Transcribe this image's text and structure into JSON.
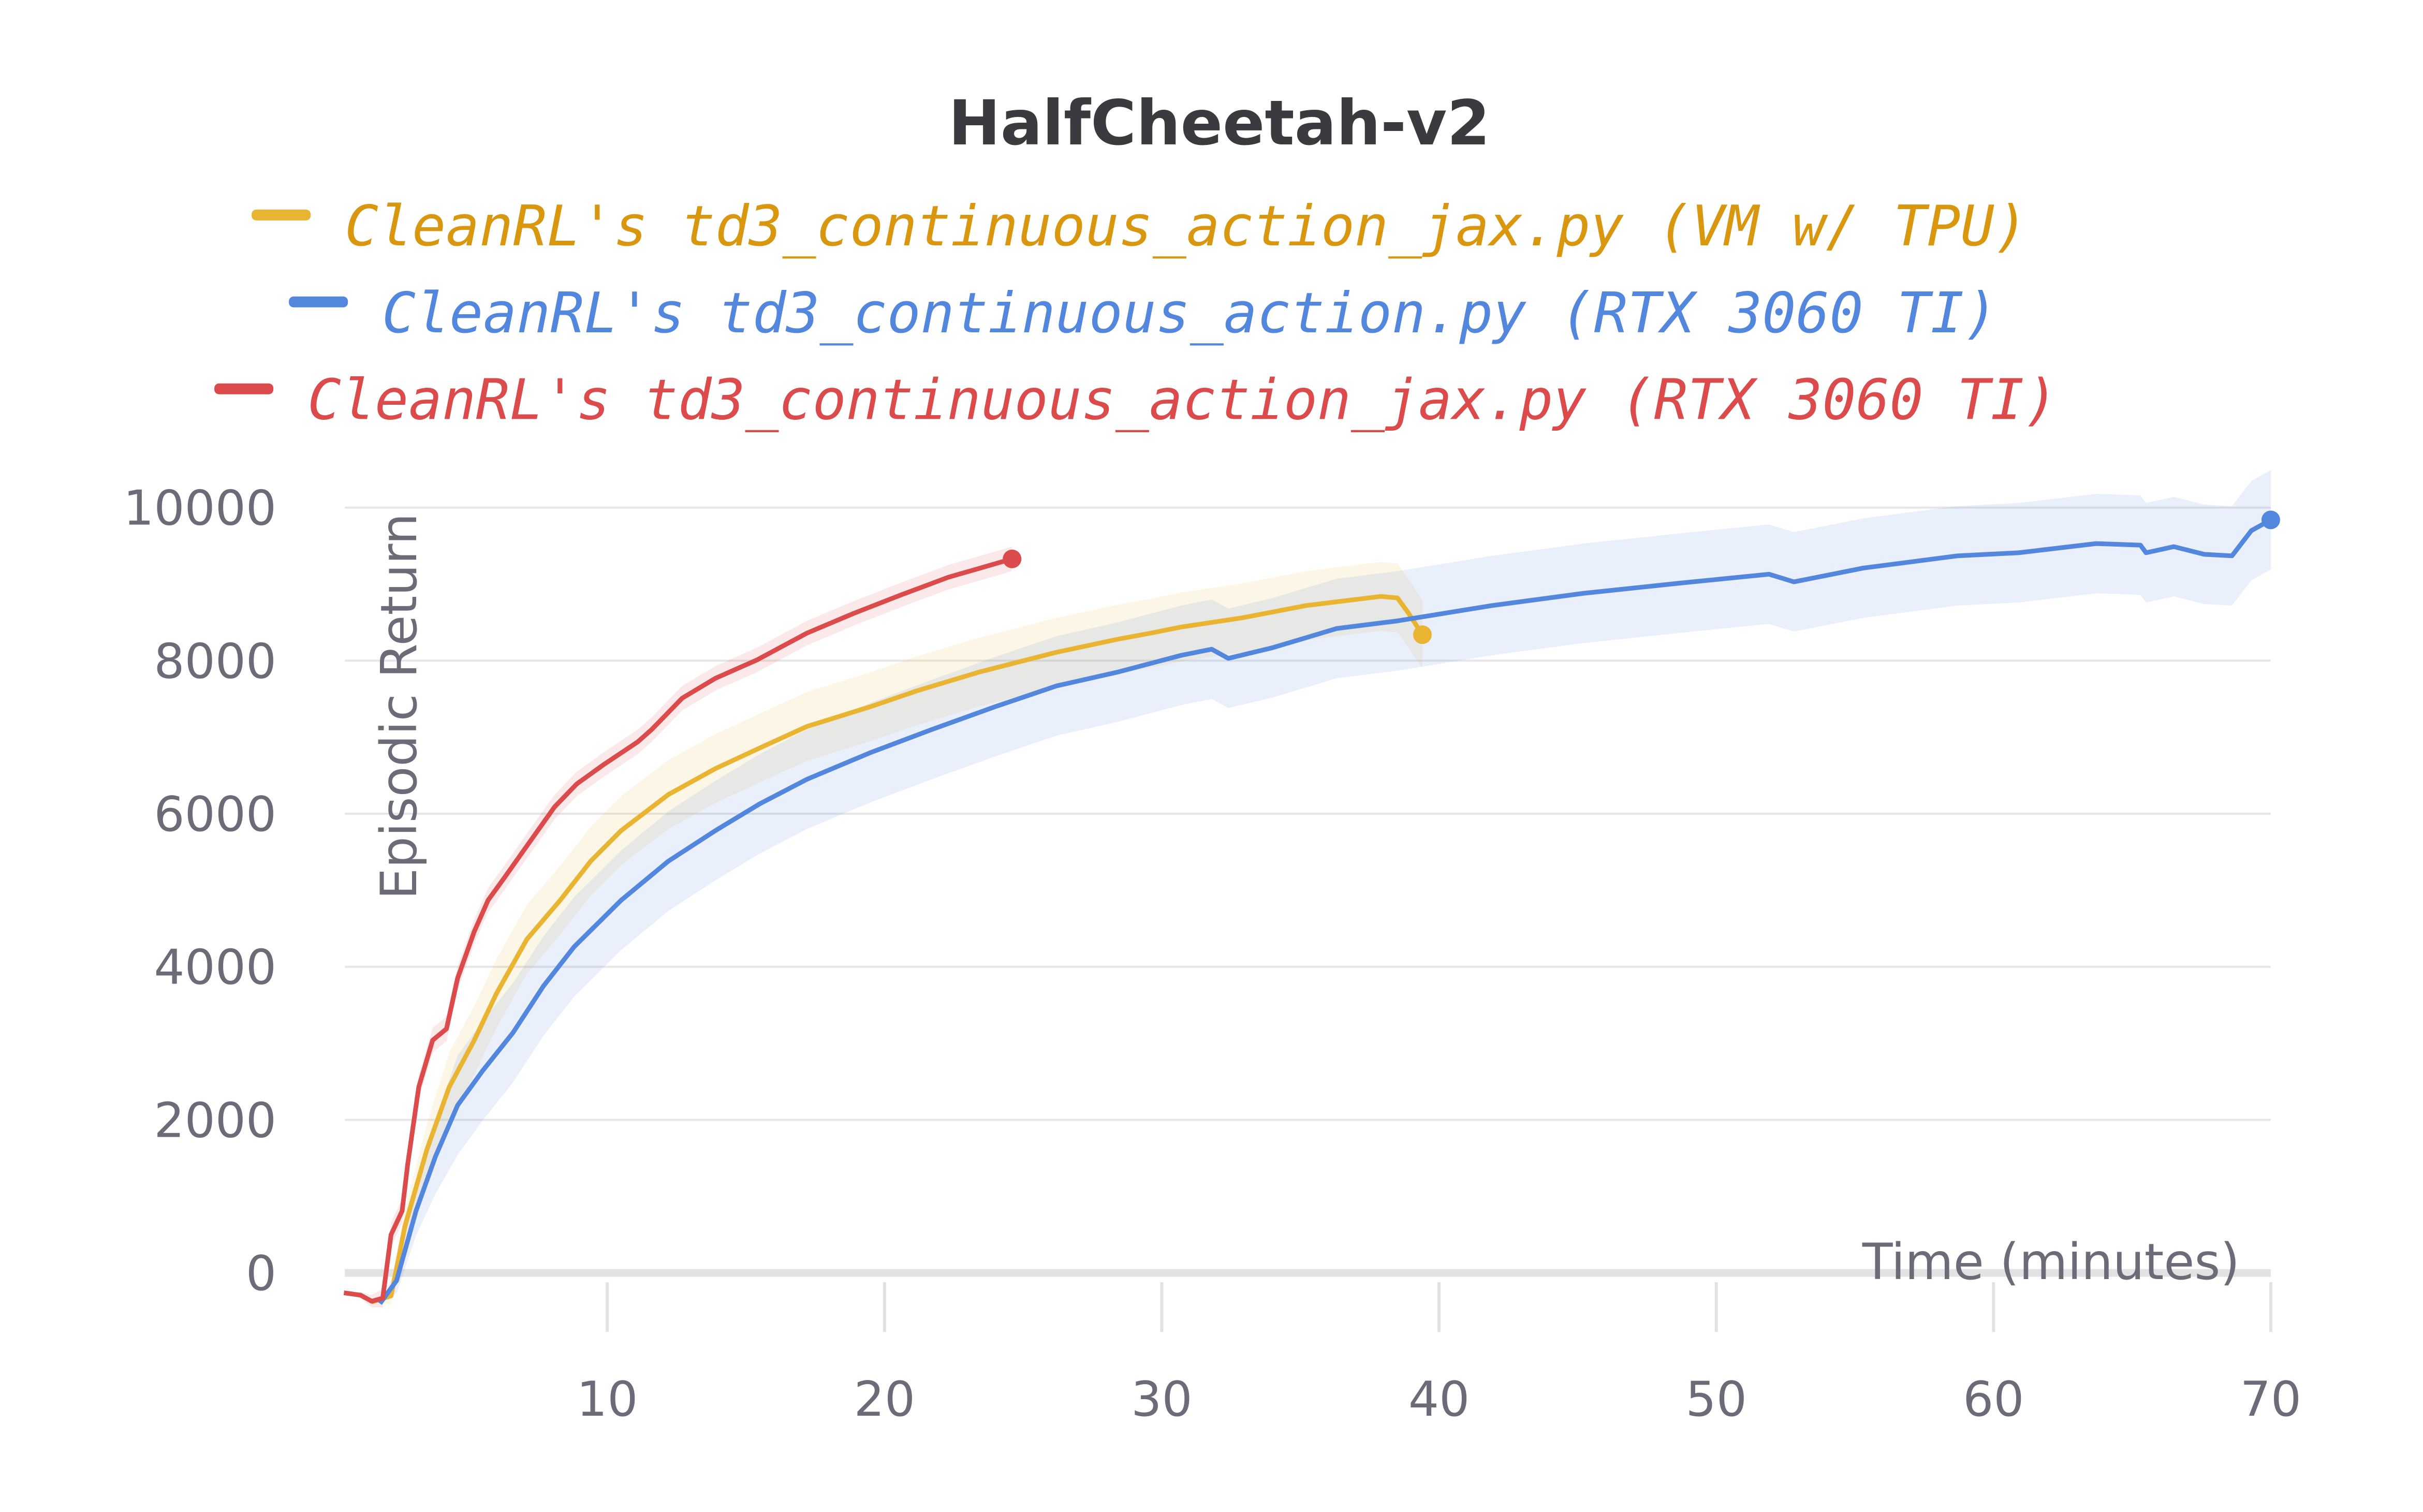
{
  "chart_data": {
    "type": "line",
    "title": "HalfCheetah-v2",
    "xlabel": "Time (minutes)",
    "ylabel": "Episodic Return",
    "xlim": [
      0,
      70
    ],
    "ylim": [
      -600,
      10000
    ],
    "xticks": [
      10,
      20,
      30,
      40,
      50,
      60,
      70
    ],
    "yticks": [
      0,
      2000,
      4000,
      6000,
      8000,
      10000
    ],
    "xtick_labels": [
      "10",
      "20",
      "30",
      "40",
      "50",
      "60",
      "70"
    ],
    "ytick_labels": [
      "0",
      "2000",
      "4000",
      "6000",
      "8000",
      "10000"
    ],
    "grid": true,
    "legend_position": "top",
    "series": [
      {
        "name": "CleanRL's td3_continuous_action_jax.py (VM w/ TPU)",
        "color": "#e8b432",
        "band": 450,
        "points": [
          [
            1.5,
            -380
          ],
          [
            2.2,
            -300
          ],
          [
            2.7,
            610
          ],
          [
            3.5,
            1620
          ],
          [
            4.3,
            2430
          ],
          [
            5.2,
            3040
          ],
          [
            6.0,
            3650
          ],
          [
            7.1,
            4360
          ],
          [
            8.3,
            4870
          ],
          [
            9.4,
            5380
          ],
          [
            10.5,
            5780
          ],
          [
            12.2,
            6250
          ],
          [
            13.9,
            6590
          ],
          [
            15.5,
            6860
          ],
          [
            17.2,
            7140
          ],
          [
            19.5,
            7400
          ],
          [
            21.2,
            7610
          ],
          [
            23.4,
            7850
          ],
          [
            26.2,
            8110
          ],
          [
            28.4,
            8280
          ],
          [
            29.6,
            8360
          ],
          [
            30.7,
            8440
          ],
          [
            32.9,
            8560
          ],
          [
            35.2,
            8720
          ],
          [
            37.9,
            8840
          ],
          [
            38.5,
            8820
          ],
          [
            38.9,
            8620
          ],
          [
            39.4,
            8340
          ]
        ]
      },
      {
        "name": "CleanRL's td3_continuous_action.py (RTX 3060 TI)",
        "color": "#5387dd",
        "band": 650,
        "points": [
          [
            1.8,
            -400
          ],
          [
            2.4,
            -100
          ],
          [
            3.1,
            810
          ],
          [
            3.8,
            1520
          ],
          [
            4.6,
            2190
          ],
          [
            5.5,
            2640
          ],
          [
            6.6,
            3140
          ],
          [
            7.7,
            3750
          ],
          [
            8.8,
            4260
          ],
          [
            10.5,
            4870
          ],
          [
            12.2,
            5380
          ],
          [
            13.9,
            5780
          ],
          [
            15.5,
            6130
          ],
          [
            17.2,
            6450
          ],
          [
            19.5,
            6800
          ],
          [
            21.7,
            7100
          ],
          [
            24.0,
            7400
          ],
          [
            26.2,
            7670
          ],
          [
            28.4,
            7850
          ],
          [
            30.7,
            8070
          ],
          [
            31.8,
            8150
          ],
          [
            32.4,
            8030
          ],
          [
            34.0,
            8170
          ],
          [
            35.2,
            8300
          ],
          [
            36.3,
            8420
          ],
          [
            38.5,
            8520
          ],
          [
            41.9,
            8720
          ],
          [
            45.2,
            8880
          ],
          [
            48.6,
            9010
          ],
          [
            51.9,
            9130
          ],
          [
            52.8,
            9030
          ],
          [
            55.3,
            9210
          ],
          [
            58.7,
            9370
          ],
          [
            60.9,
            9410
          ],
          [
            63.7,
            9530
          ],
          [
            65.3,
            9510
          ],
          [
            65.5,
            9410
          ],
          [
            66.5,
            9490
          ],
          [
            67.6,
            9390
          ],
          [
            68.6,
            9370
          ],
          [
            69.3,
            9700
          ],
          [
            70.0,
            9840
          ]
        ]
      },
      {
        "name": "CleanRL's td3_continuous_action_jax.py (RTX 3060 TI)",
        "color": "#db4b4b",
        "band": 160,
        "points": [
          [
            0.5,
            -260
          ],
          [
            1.1,
            -290
          ],
          [
            1.5,
            -370
          ],
          [
            1.9,
            -330
          ],
          [
            2.2,
            500
          ],
          [
            2.6,
            810
          ],
          [
            2.8,
            1420
          ],
          [
            3.2,
            2430
          ],
          [
            3.7,
            3040
          ],
          [
            4.2,
            3190
          ],
          [
            4.6,
            3850
          ],
          [
            5.2,
            4460
          ],
          [
            5.7,
            4870
          ],
          [
            6.3,
            5170
          ],
          [
            7.1,
            5580
          ],
          [
            8.1,
            6090
          ],
          [
            8.9,
            6390
          ],
          [
            9.9,
            6650
          ],
          [
            11.1,
            6940
          ],
          [
            11.6,
            7100
          ],
          [
            12.7,
            7510
          ],
          [
            13.9,
            7770
          ],
          [
            15.4,
            8010
          ],
          [
            17.2,
            8360
          ],
          [
            18.9,
            8620
          ],
          [
            20.6,
            8860
          ],
          [
            22.3,
            9090
          ],
          [
            24.6,
            9330
          ]
        ]
      }
    ]
  }
}
